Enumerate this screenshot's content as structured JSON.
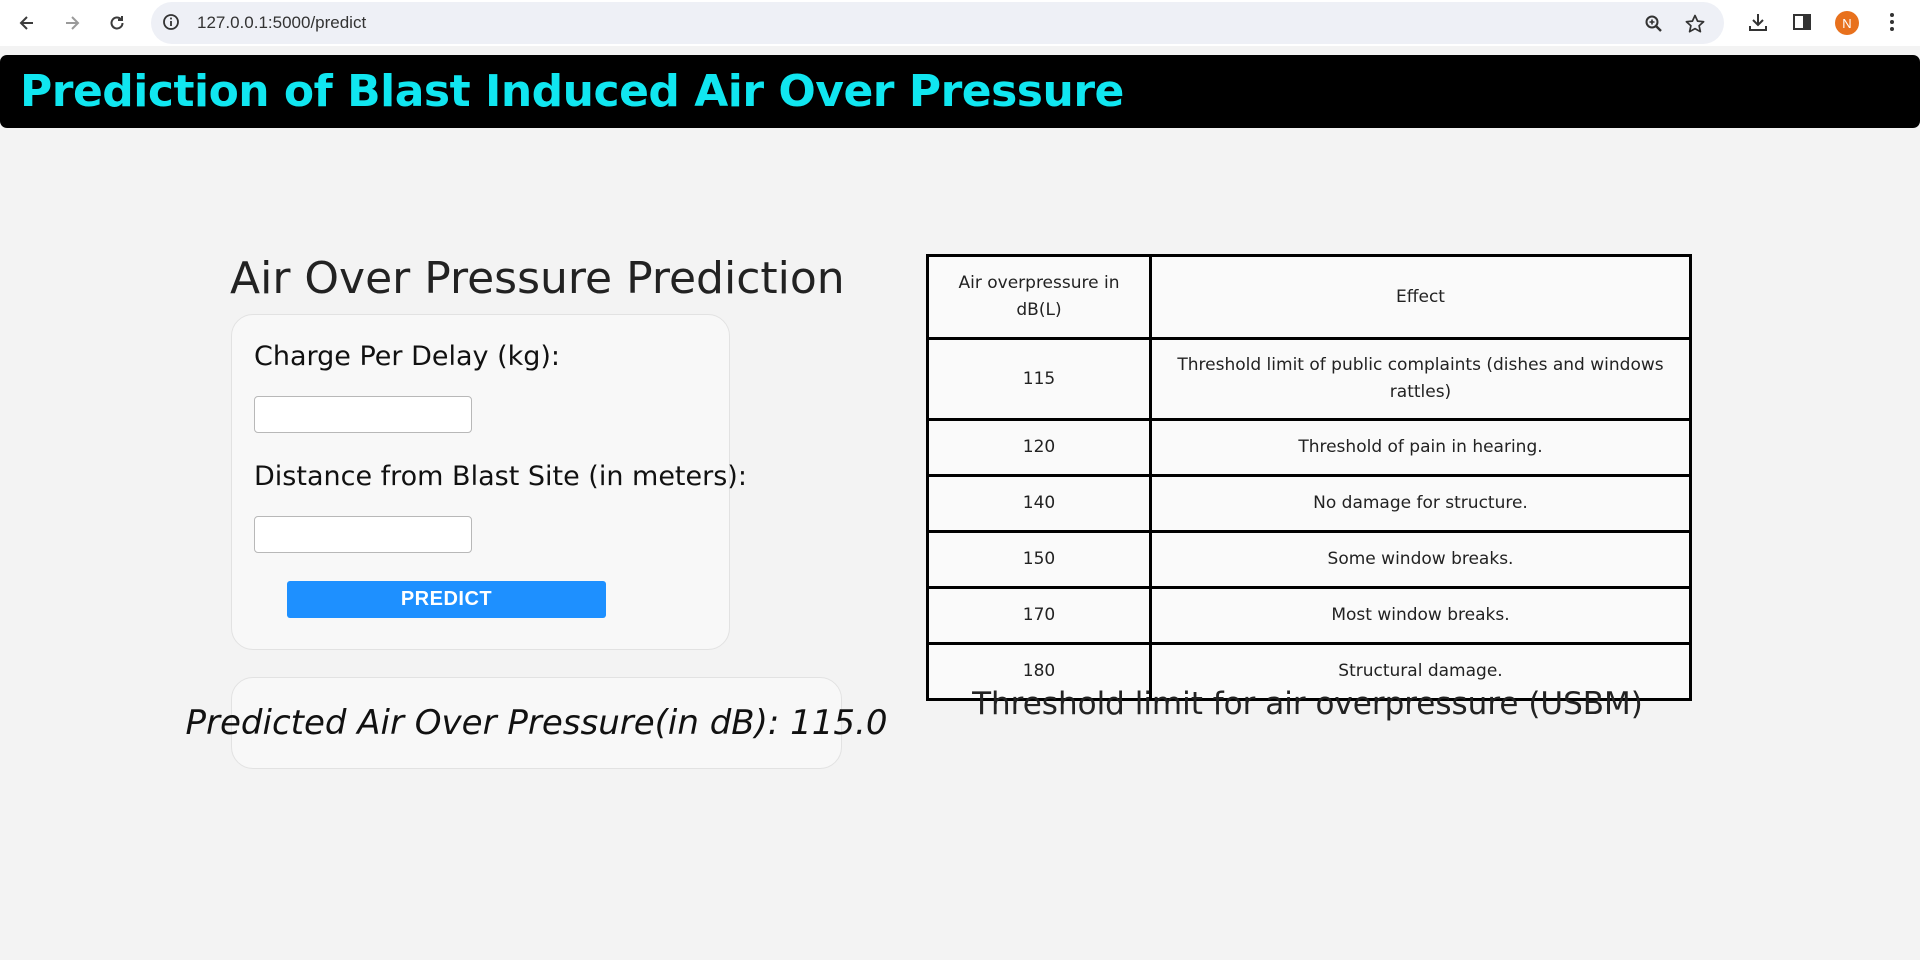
{
  "browser": {
    "url": "127.0.0.1:5000/predict",
    "profile_initial": "N"
  },
  "header": {
    "title": "Prediction of Blast Induced Air Over Pressure"
  },
  "form": {
    "heading": "Air Over Pressure Prediction",
    "charge_label": "Charge Per Delay (kg):",
    "charge_value": "",
    "distance_label": "Distance from Blast Site (in meters):",
    "distance_value": "",
    "submit_label": "PREDICT"
  },
  "result": {
    "text": "Predicted Air Over Pressure(in dB): 115.0"
  },
  "threshold_table": {
    "headers": [
      "Air overpressure in dB(L)",
      "Effect"
    ],
    "rows": [
      {
        "value": "115",
        "effect": "Threshold limit of public complaints (dishes and windows rattles)"
      },
      {
        "value": "120",
        "effect": "Threshold of pain in hearing."
      },
      {
        "value": "140",
        "effect": "No damage for structure."
      },
      {
        "value": "150",
        "effect": "Some window breaks."
      },
      {
        "value": "170",
        "effect": "Most window breaks."
      },
      {
        "value": "180",
        "effect": "Structural damage."
      }
    ],
    "caption": "Threshold limit for air overpressure (USBM)"
  }
}
